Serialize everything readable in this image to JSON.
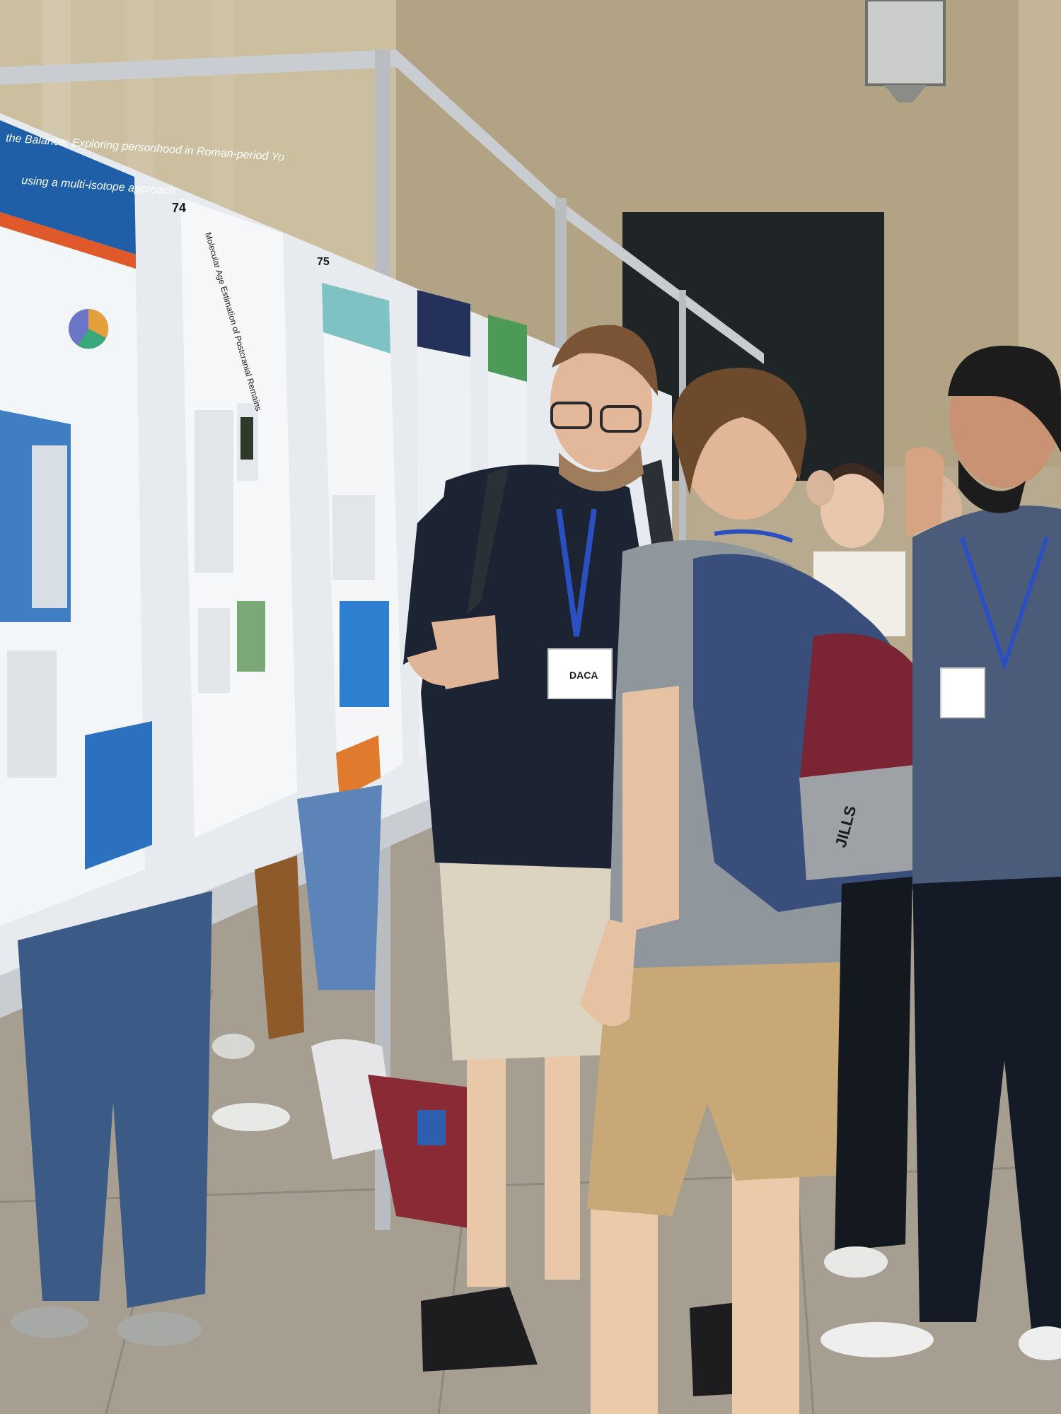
{
  "scene": {
    "description_type": "poster-session-photo"
  },
  "posters": [
    {
      "number": "",
      "title_line_1": "the Balance: Exploring personhood in Roman-period Yo",
      "title_line_2": "using a multi-isotope approach"
    },
    {
      "number": "74",
      "title_line_1": "Molecular Age Estimation of Postcranial Remains"
    },
    {
      "number": "75",
      "title_line_1": ""
    }
  ],
  "badges": {
    "presenter_badge_name": "DACA"
  },
  "backpack": {
    "brand": "JILLS"
  },
  "colors": {
    "wall": "#b9ab8e",
    "floor": "#a79f92",
    "board": "#e9ecef",
    "poster_blue": "#1f5fa8",
    "shirt_navy": "#1c2333",
    "shorts_khaki": "#c9a878",
    "backpack_blue": "#3a4e7c",
    "backpack_red": "#7a2434",
    "lanyard_blue": "#2a4fc0"
  }
}
